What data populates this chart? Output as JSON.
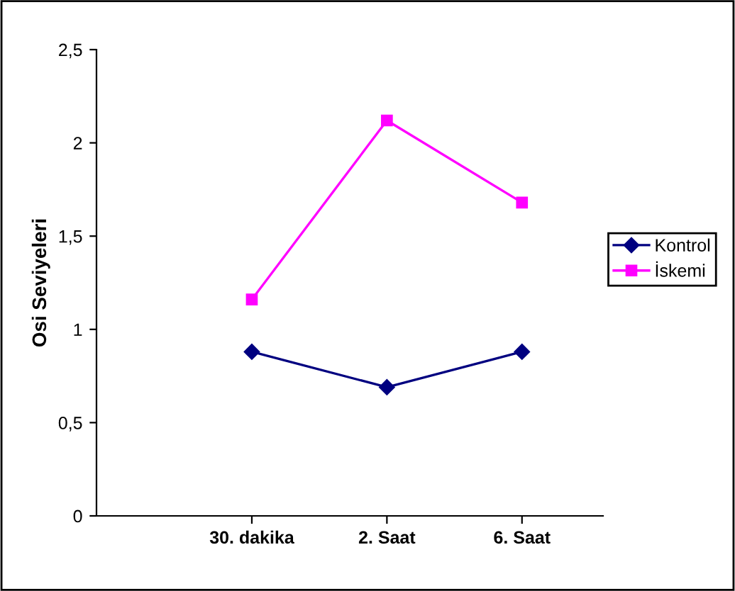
{
  "chart_data": {
    "type": "line",
    "ylabel": "Osi Seviyeleri",
    "categories": [
      "30. dakika",
      "2. Saat",
      "6. Saat"
    ],
    "series": [
      {
        "name": "Kontrol",
        "color": "#000080",
        "marker": "diamond",
        "values": [
          0.88,
          0.69,
          0.88
        ]
      },
      {
        "name": "İskemi",
        "color": "#ff00ff",
        "marker": "square",
        "values": [
          1.16,
          2.12,
          1.68
        ]
      }
    ],
    "ylim": [
      0,
      2.5
    ],
    "yticks": [
      {
        "value": 0,
        "label": "0"
      },
      {
        "value": 0.5,
        "label": "0,5"
      },
      {
        "value": 1,
        "label": "1"
      },
      {
        "value": 1.5,
        "label": "1,5"
      },
      {
        "value": 2,
        "label": "2"
      },
      {
        "value": 2.5,
        "label": "2,5"
      }
    ],
    "grid": false,
    "legend": "right",
    "line_style": "solid"
  }
}
